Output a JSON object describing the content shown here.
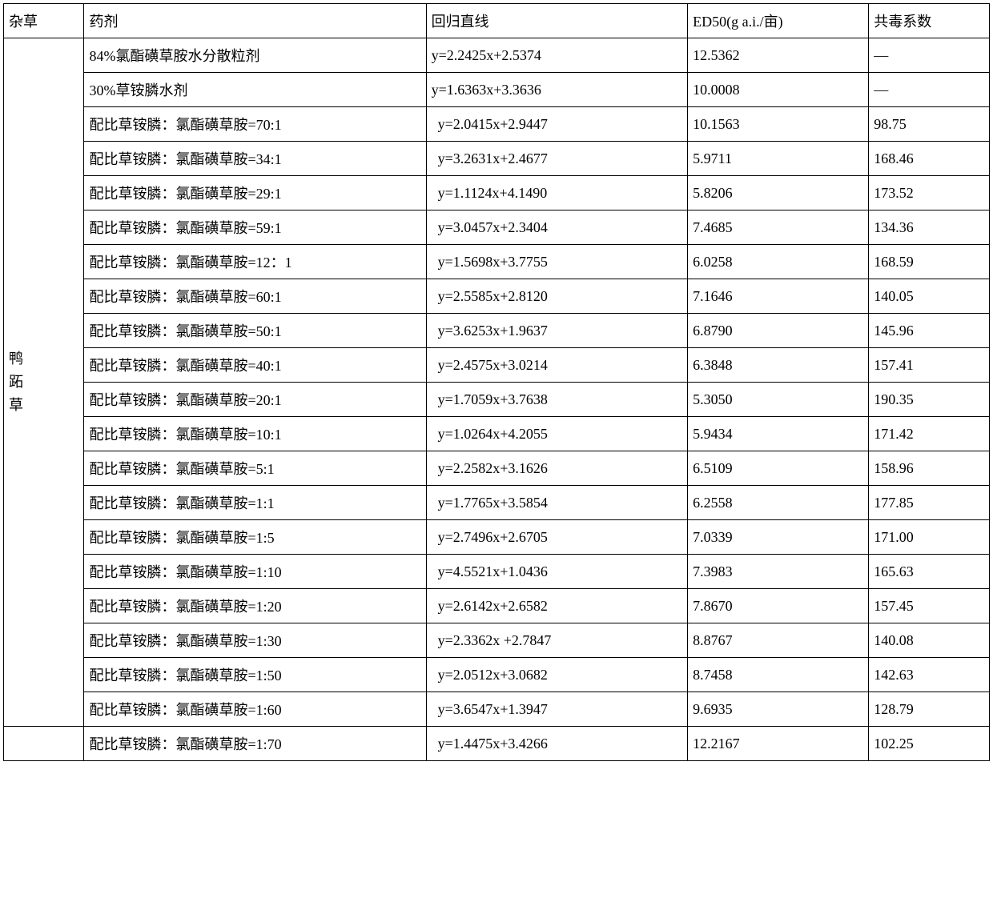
{
  "headers": {
    "weed": "杂草",
    "agent": "药剂",
    "regression": "回归直线",
    "ed50": "ED50(g a.i./亩)",
    "toxicity": "共毒系数"
  },
  "weed_label": "鸭 跖草",
  "rows": [
    {
      "agent": "84%氯酯磺草胺水分散粒剂",
      "regression": "y=2.2425x+2.5374",
      "ed50": "12.5362",
      "toxicity": "—",
      "indent": false
    },
    {
      "agent": "30%草铵膦水剂",
      "regression": "y=1.6363x+3.3636",
      "ed50": "10.0008",
      "toxicity": "—",
      "indent": false
    },
    {
      "agent": "配比草铵膦：氯酯磺草胺=70:1",
      "regression": "y=2.0415x+2.9447",
      "ed50": "10.1563",
      "toxicity": "98.75",
      "indent": true
    },
    {
      "agent": "配比草铵膦：氯酯磺草胺=34:1",
      "regression": "y=3.2631x+2.4677",
      "ed50": "5.9711",
      "toxicity": "168.46",
      "indent": true
    },
    {
      "agent": "配比草铵膦：氯酯磺草胺=29:1",
      "regression": "y=1.1124x+4.1490",
      "ed50": "5.8206",
      "toxicity": "173.52",
      "indent": true
    },
    {
      "agent": "配比草铵膦：氯酯磺草胺=59:1",
      "regression": "y=3.0457x+2.3404",
      "ed50": "7.4685",
      "toxicity": "134.36",
      "indent": true
    },
    {
      "agent": "配比草铵膦：氯酯磺草胺=12：1",
      "regression": "y=1.5698x+3.7755",
      "ed50": "6.0258",
      "toxicity": "168.59",
      "indent": true
    },
    {
      "agent": "配比草铵膦：氯酯磺草胺=60:1",
      "regression": "y=2.5585x+2.8120",
      "ed50": "7.1646",
      "toxicity": "140.05",
      "indent": true
    },
    {
      "agent": "配比草铵膦：氯酯磺草胺=50:1",
      "regression": "y=3.6253x+1.9637",
      "ed50": "6.8790",
      "toxicity": "145.96",
      "indent": true
    },
    {
      "agent": "配比草铵膦：氯酯磺草胺=40:1",
      "regression": "y=2.4575x+3.0214",
      "ed50": "6.3848",
      "toxicity": "157.41",
      "indent": true
    },
    {
      "agent": "配比草铵膦：氯酯磺草胺=20:1",
      "regression": "y=1.7059x+3.7638",
      "ed50": "5.3050",
      "toxicity": "190.35",
      "indent": true
    },
    {
      "agent": "配比草铵膦：氯酯磺草胺=10:1",
      "regression": "y=1.0264x+4.2055",
      "ed50": "5.9434",
      "toxicity": "171.42",
      "indent": true
    },
    {
      "agent": "配比草铵膦：氯酯磺草胺=5:1",
      "regression": "y=2.2582x+3.1626",
      "ed50": "6.5109",
      "toxicity": "158.96",
      "indent": true
    },
    {
      "agent": "配比草铵膦：氯酯磺草胺=1:1",
      "regression": "y=1.7765x+3.5854",
      "ed50": "6.2558",
      "toxicity": "177.85",
      "indent": true
    },
    {
      "agent": "配比草铵膦：氯酯磺草胺=1:5",
      "regression": "y=2.7496x+2.6705",
      "ed50": "7.0339",
      "toxicity": "171.00",
      "indent": true
    },
    {
      "agent": "配比草铵膦：氯酯磺草胺=1:10",
      "regression": "y=4.5521x+1.0436",
      "ed50": "7.3983",
      "toxicity": "165.63",
      "indent": true
    },
    {
      "agent": "配比草铵膦：氯酯磺草胺=1:20",
      "regression": "y=2.6142x+2.6582",
      "ed50": "7.8670",
      "toxicity": "157.45",
      "indent": true
    },
    {
      "agent": "配比草铵膦：氯酯磺草胺=1:30",
      "regression": "y=2.3362x +2.7847",
      "ed50": "8.8767",
      "toxicity": "140.08",
      "indent": true
    },
    {
      "agent": "配比草铵膦：氯酯磺草胺=1:50",
      "regression": "y=2.0512x+3.0682",
      "ed50": "8.7458",
      "toxicity": "142.63",
      "indent": true
    },
    {
      "agent": "配比草铵膦：氯酯磺草胺=1:60",
      "regression": "y=3.6547x+1.3947",
      "ed50": "9.6935",
      "toxicity": "128.79",
      "indent": true
    },
    {
      "agent": "配比草铵膦：氯酯磺草胺=1:70",
      "regression": "y=1.4475x+3.4266",
      "ed50": "12.2167",
      "toxicity": "102.25",
      "indent": true
    }
  ],
  "main_rowspan": 20
}
